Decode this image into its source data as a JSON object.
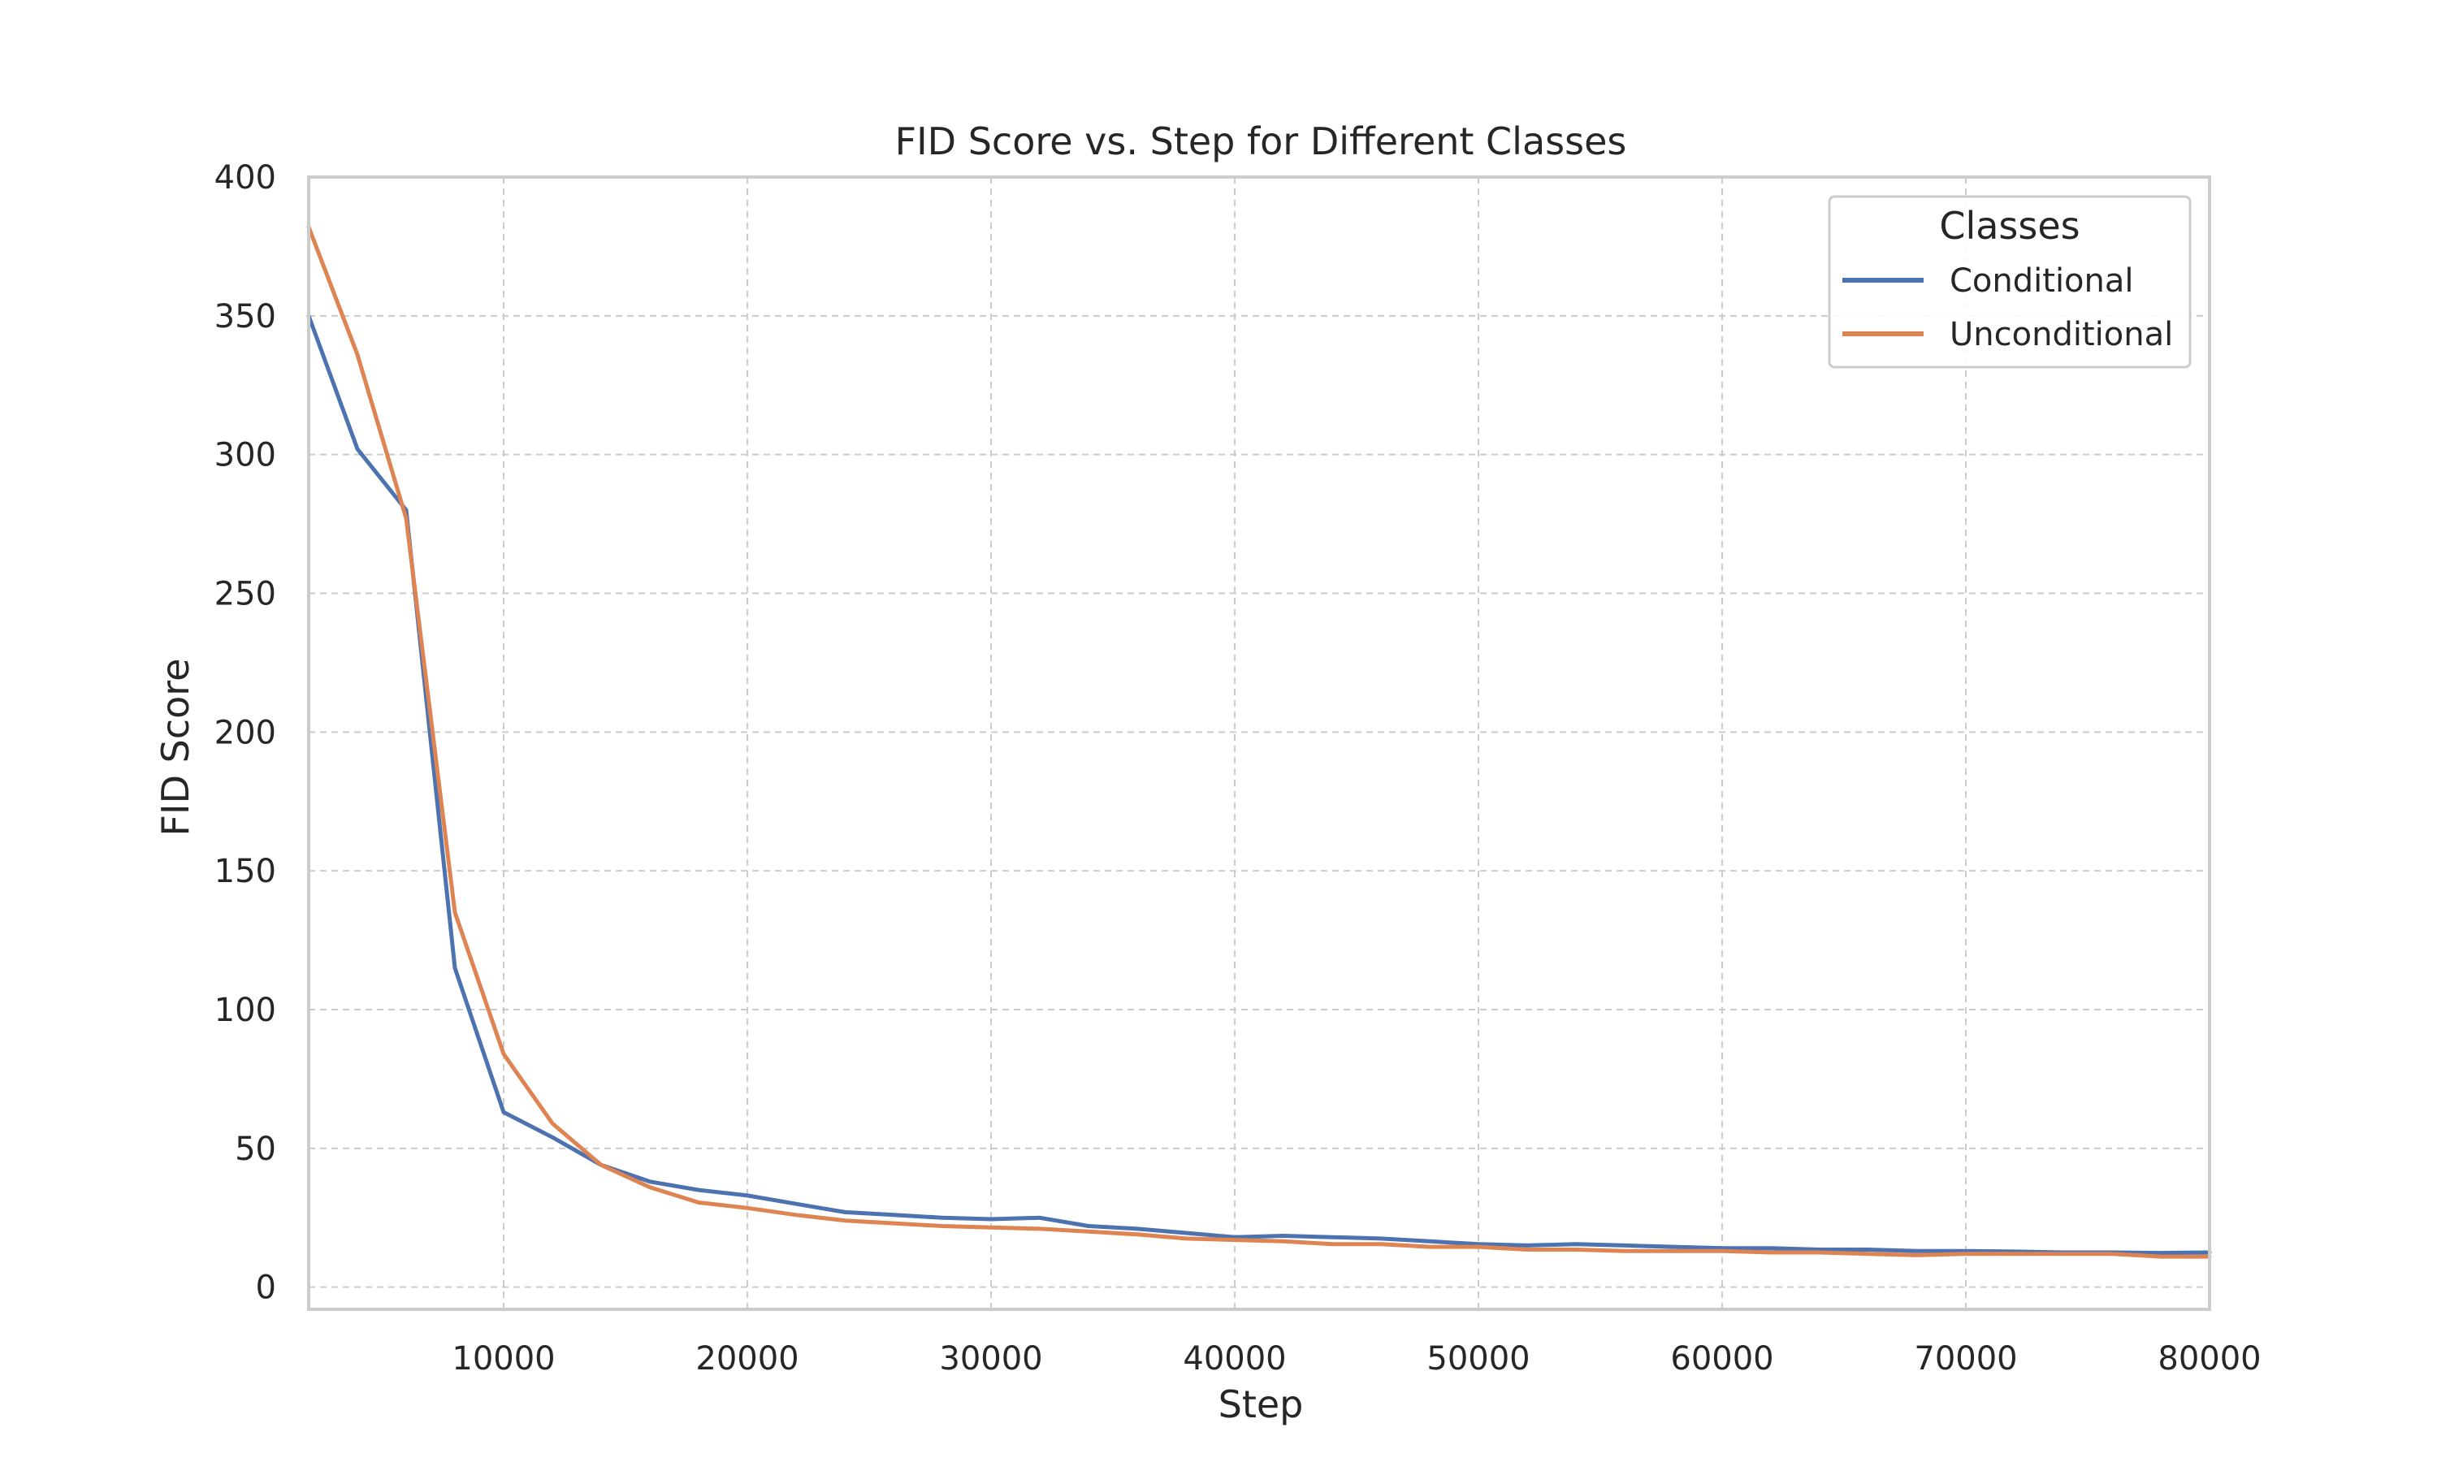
{
  "chart_data": {
    "type": "line",
    "title": "FID Score vs. Step for Different Classes",
    "xlabel": "Step",
    "ylabel": "FID Score",
    "xlim": [
      2000,
      80000
    ],
    "ylim": [
      -8,
      400
    ],
    "x_ticks": [
      10000,
      20000,
      30000,
      40000,
      50000,
      60000,
      70000,
      80000
    ],
    "y_ticks": [
      0,
      50,
      100,
      150,
      200,
      250,
      300,
      350,
      400
    ],
    "grid": true,
    "legend": {
      "title": "Classes",
      "position": "top-right"
    },
    "x": [
      2000,
      4000,
      6000,
      8000,
      10000,
      12000,
      14000,
      16000,
      18000,
      20000,
      22000,
      24000,
      26000,
      28000,
      30000,
      32000,
      34000,
      36000,
      38000,
      40000,
      42000,
      44000,
      46000,
      48000,
      50000,
      52000,
      54000,
      56000,
      58000,
      60000,
      62000,
      64000,
      66000,
      68000,
      70000,
      72000,
      74000,
      76000,
      78000,
      80000
    ],
    "series": [
      {
        "name": "Conditional",
        "color": "#4c72b0",
        "values": [
          350,
          302,
          280,
          115,
          63,
          54,
          44,
          38,
          35,
          33,
          30,
          27,
          26,
          25,
          24.5,
          25,
          22,
          21,
          19.5,
          18,
          18.5,
          18,
          17.5,
          16.5,
          15.5,
          15,
          15.5,
          15,
          14.5,
          14,
          14,
          13.5,
          13.5,
          13,
          13,
          12.8,
          12.5,
          12.5,
          12.3,
          12.5
        ]
      },
      {
        "name": "Unconditional",
        "color": "#dd8452",
        "values": [
          382,
          336,
          277,
          135,
          84,
          59,
          44,
          36,
          30.5,
          28.5,
          26,
          24,
          23,
          22,
          21.5,
          21,
          20,
          19,
          17.5,
          17,
          16.5,
          15.5,
          15.5,
          14.5,
          14.5,
          13.5,
          13.5,
          13,
          13,
          13,
          12.5,
          12.5,
          12,
          11.5,
          12,
          12,
          12,
          12,
          11,
          11
        ]
      }
    ]
  }
}
